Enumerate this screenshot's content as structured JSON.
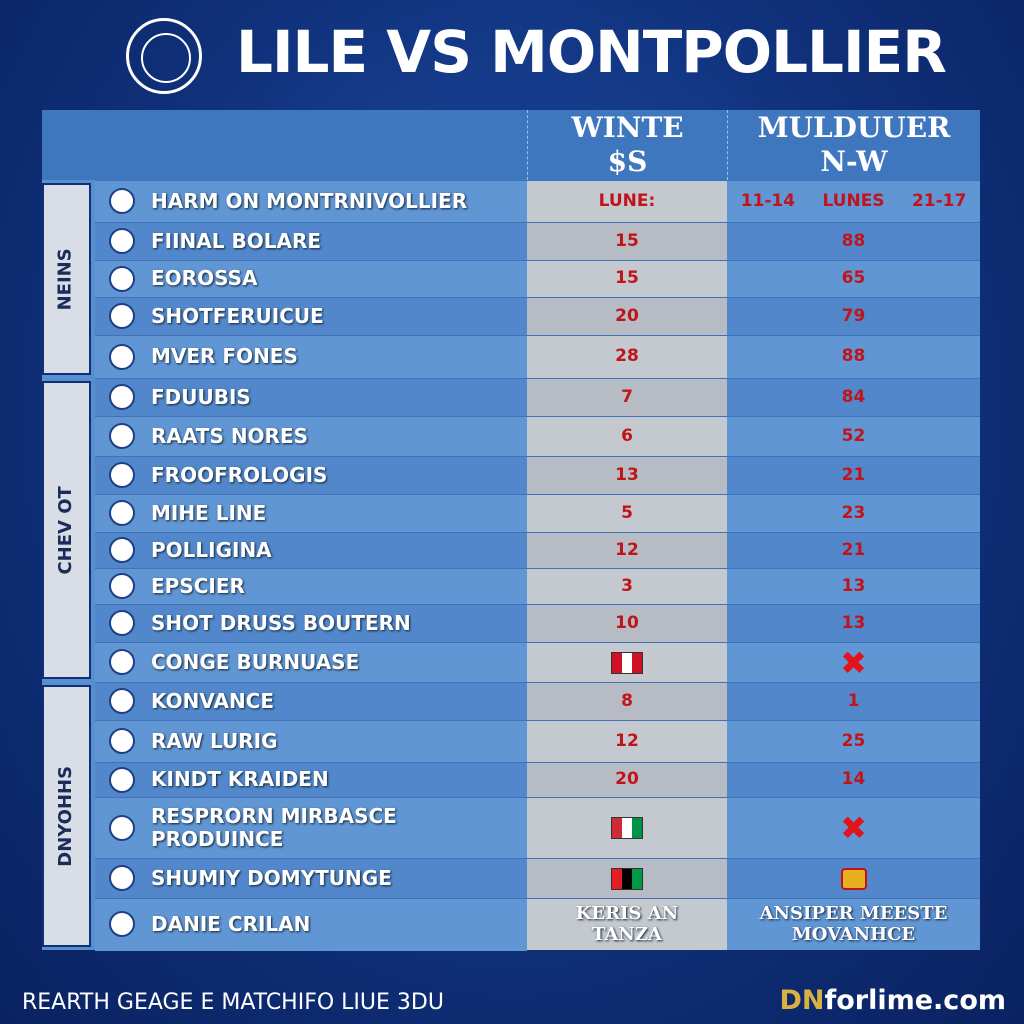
{
  "header": {
    "title": "LILE VS MONTPOLLIER"
  },
  "table": {
    "columns": [
      [
        "WINTE",
        "$S"
      ],
      [
        "MULDUUER",
        "N-W"
      ]
    ],
    "groups": [
      "NEINS",
      "CHEV OT",
      "DNYOHHS"
    ],
    "rows": [
      {
        "name": "HARM ON MONTRNIVOLLIER",
        "a": "LUNE:",
        "b": [
          "11-14",
          "LUNES",
          "21-17"
        ]
      },
      {
        "name": "FIINAL BOLARE",
        "a": 15,
        "b": 88
      },
      {
        "name": "EOROSSA",
        "a": 15,
        "b": 65
      },
      {
        "name": "SHOTFERUICUE",
        "a": 20,
        "b": 79
      },
      {
        "name": "MVER FONES",
        "a": 28,
        "b": 88
      },
      {
        "name": "FDUUBIS",
        "a": 7,
        "b": 84
      },
      {
        "name": "RAATS NORES",
        "a": 6,
        "b": 52
      },
      {
        "name": "FROOFROLOGIS",
        "a": 13,
        "b": 21
      },
      {
        "name": "MIHE LINE",
        "a": 5,
        "b": 23
      },
      {
        "name": "POLLIGINA",
        "a": 12,
        "b": 21
      },
      {
        "name": "EPSCIER",
        "a": 3,
        "b": 13
      },
      {
        "name": "SHOT DRUSS BOUTERN",
        "a": 10,
        "b": 13
      },
      {
        "name": "CONGE BURNUASE"
      },
      {
        "name": "KONVANCE",
        "a": 8,
        "b": 1
      },
      {
        "name": "RAW LURIG",
        "a": 12,
        "b": 25
      },
      {
        "name": "KINDT KRAIDEN",
        "a": 20,
        "b": 14
      },
      {
        "name": [
          "RESPRORN MIRBASCE",
          "PRODUINCE"
        ]
      },
      {
        "name": "SHUMIY DOMYTUNGE"
      },
      {
        "name": "DANIE CRILAN",
        "a": [
          "KERIS AN",
          "TANZA"
        ],
        "b": [
          "ANSIPER MEESTE",
          "MOVANHCE"
        ]
      }
    ]
  },
  "footer": {
    "caption": "REARTH GEAGE E MATCHIFO LIUE 3DU",
    "brand_prefix": "DN",
    "brand": "forlime.com"
  }
}
